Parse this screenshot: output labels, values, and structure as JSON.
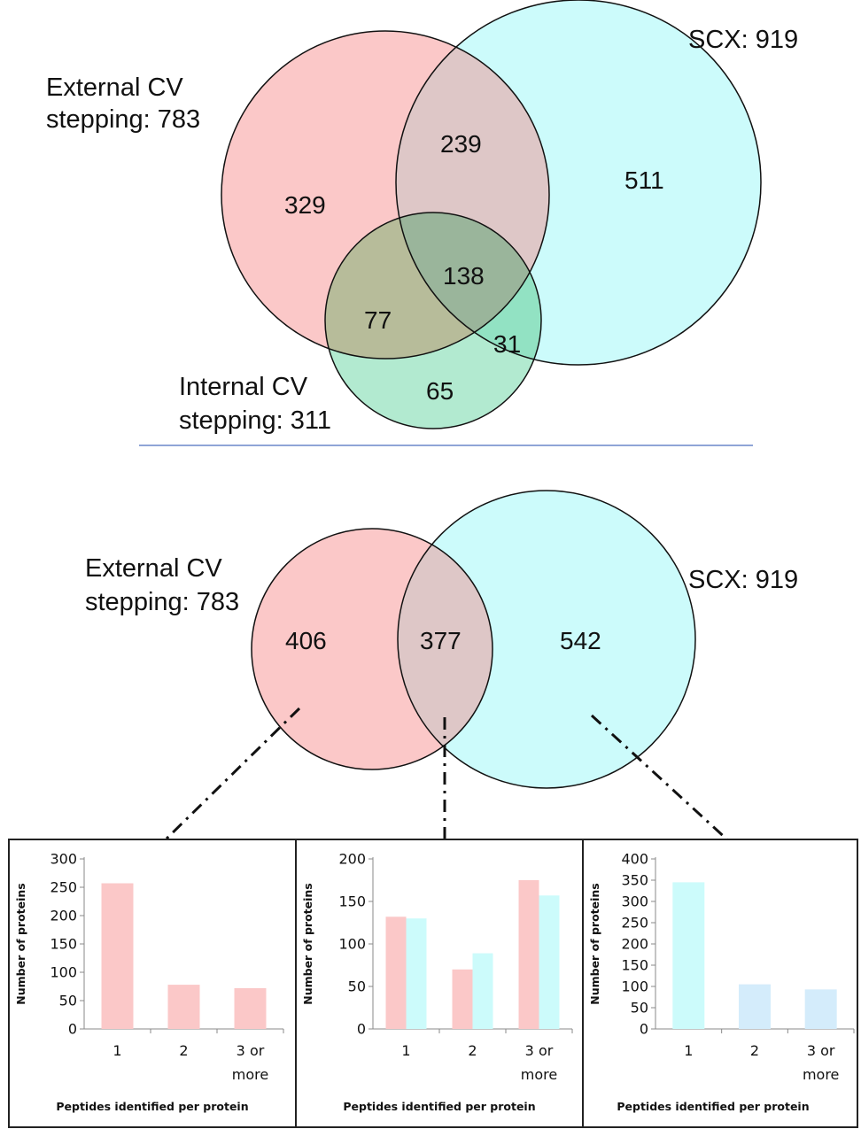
{
  "venn3": {
    "label_external_line1": "External CV",
    "label_external_line2": "stepping: 783",
    "label_scx": "SCX: 919",
    "label_internal_line1": "Internal CV",
    "label_internal_line2": "stepping: 311",
    "regions": {
      "external_only": "329",
      "external_scx": "239",
      "scx_only": "511",
      "all_three": "138",
      "external_internal": "77",
      "internal_scx": "31",
      "internal_only": "65"
    },
    "colors": {
      "external": "#fbc8c8",
      "scx": "#ccfbfb",
      "internal": "#7fd3a8"
    }
  },
  "venn2": {
    "label_external_line1": "External CV",
    "label_external_line2": "stepping: 783",
    "label_scx": "SCX: 919",
    "regions": {
      "external_only": "406",
      "overlap": "377",
      "scx_only": "542"
    }
  },
  "chart_data": [
    {
      "type": "bar",
      "categories": [
        "1",
        "2",
        "3 or more"
      ],
      "series": [
        {
          "values": [
            257,
            78,
            72
          ],
          "color": "#fbc8c8"
        }
      ],
      "ylim": [
        0,
        300
      ],
      "yticks": [
        "0",
        "50",
        "100",
        "150",
        "200",
        "250",
        "300"
      ],
      "xlabel": "Peptides identified per protein",
      "ylabel": "Number of proteins"
    },
    {
      "type": "bar",
      "categories": [
        "1",
        "2",
        "3 or more"
      ],
      "series": [
        {
          "values": [
            132,
            70,
            175
          ],
          "color": "#fbc8c8"
        },
        {
          "values": [
            130,
            89,
            157
          ],
          "color": "#ccfbfb"
        }
      ],
      "ylim": [
        0,
        200
      ],
      "yticks": [
        "0",
        "50",
        "100",
        "150",
        "200"
      ],
      "xlabel": "Peptides identified per protein",
      "ylabel": "Number of proteins"
    },
    {
      "type": "bar",
      "categories": [
        "1",
        "2",
        "3 or more"
      ],
      "series": [
        {
          "values": [
            345,
            105,
            93
          ],
          "colors": [
            "#ccfbfb",
            "#d4ecfb",
            "#d4ecfb"
          ]
        }
      ],
      "ylim": [
        0,
        400
      ],
      "yticks": [
        "0",
        "50",
        "100",
        "150",
        "200",
        "250",
        "300",
        "350",
        "400"
      ],
      "xlabel": "Peptides identified per protein",
      "ylabel": "Number of proteins"
    }
  ]
}
